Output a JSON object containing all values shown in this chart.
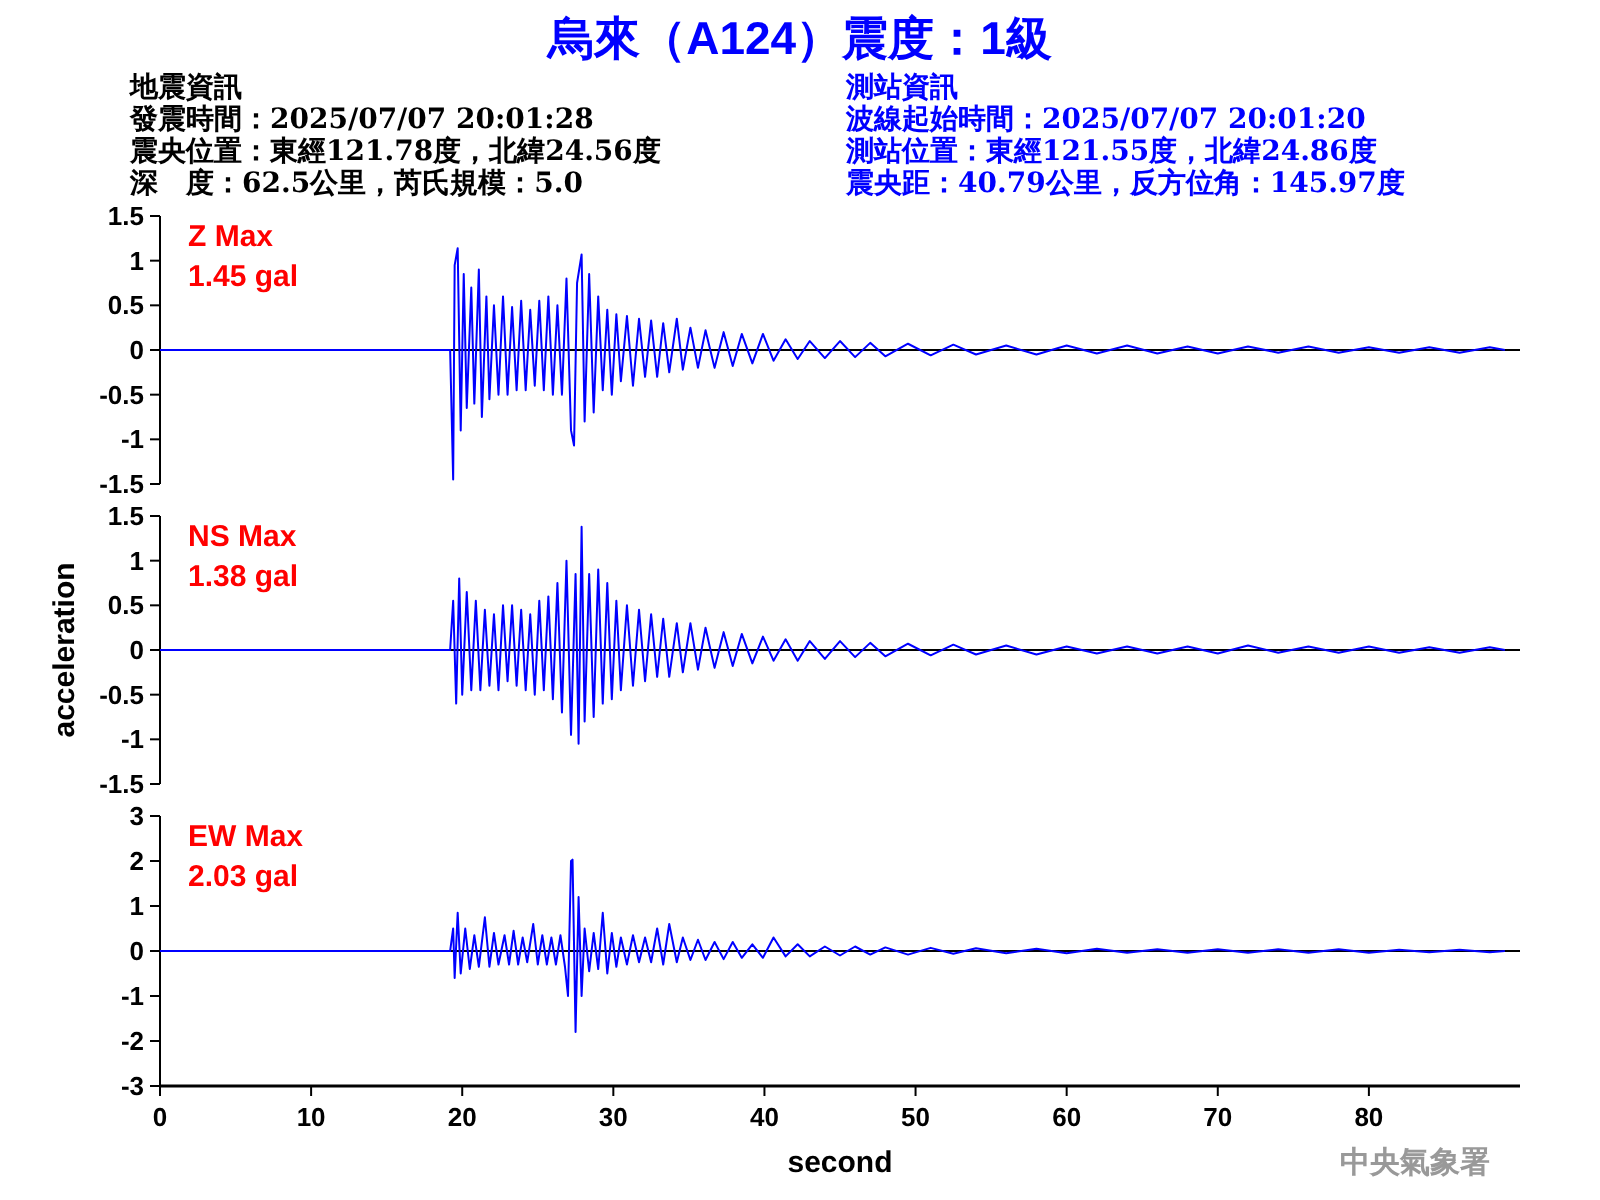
{
  "chart_data": [
    {
      "type": "line",
      "title": "烏來（A124）震度：1級",
      "annotations": [
        "Z Max",
        "1.45 gal",
        "地震資訊",
        "發震時間：2025/07/07 20:01:28",
        "震央位置：東經121.78度，北緯24.56度",
        "深　度：62.5公里，芮氏規模：5.0",
        "測站資訊",
        "波線起始時間：2025/07/07 20:01:20",
        "測站位置：東經121.55度，北緯24.86度",
        "震央距：40.79公里，反方位角：145.97度"
      ],
      "xlim": [
        0,
        90
      ],
      "ylim": [
        -1.5,
        1.5
      ],
      "yticks": [
        -1.5,
        -1,
        -0.5,
        0,
        0.5,
        1,
        1.5
      ],
      "tick_labels": "y",
      "ref_lines": [
        {
          "axis": "y",
          "value": 0,
          "color": "#000000"
        }
      ],
      "series": [
        {
          "color": "#0000ff",
          "x": [
            0,
            19.2,
            19.4,
            19.5,
            19.7,
            19.9,
            20.1,
            20.3,
            20.6,
            20.8,
            21.1,
            21.3,
            21.6,
            21.8,
            22.1,
            22.4,
            22.7,
            23.0,
            23.3,
            23.6,
            23.9,
            24.2,
            24.5,
            24.8,
            25.1,
            25.4,
            25.7,
            26.0,
            26.3,
            26.6,
            26.9,
            27.2,
            27.4,
            27.6,
            27.9,
            28.1,
            28.4,
            28.7,
            29.0,
            29.3,
            29.6,
            29.9,
            30.2,
            30.5,
            30.9,
            31.3,
            31.7,
            32.1,
            32.5,
            32.9,
            33.3,
            33.7,
            34.2,
            34.6,
            35.1,
            35.6,
            36.1,
            36.7,
            37.3,
            37.9,
            38.5,
            39.2,
            39.9,
            40.6,
            41.4,
            42.2,
            43.0,
            44.0,
            45.0,
            46.0,
            47.0,
            48.0,
            49.5,
            51,
            52.5,
            54,
            56,
            58,
            60,
            62,
            64,
            66,
            68,
            70,
            72,
            74,
            76,
            78,
            80,
            82,
            84,
            86,
            88,
            89
          ],
          "values": [
            0,
            0,
            -1.45,
            0.95,
            1.14,
            -0.9,
            0.85,
            -0.65,
            0.7,
            -0.6,
            0.9,
            -0.75,
            0.6,
            -0.55,
            0.5,
            -0.5,
            0.6,
            -0.5,
            0.48,
            -0.45,
            0.55,
            -0.45,
            0.45,
            -0.4,
            0.55,
            -0.45,
            0.6,
            -0.5,
            0.5,
            -0.5,
            0.8,
            -0.9,
            -1.07,
            0.75,
            1.07,
            -0.8,
            0.85,
            -0.7,
            0.6,
            -0.45,
            0.45,
            -0.5,
            0.4,
            -0.35,
            0.38,
            -0.4,
            0.35,
            -0.3,
            0.33,
            -0.3,
            0.3,
            -0.25,
            0.35,
            -0.22,
            0.25,
            -0.2,
            0.22,
            -0.2,
            0.2,
            -0.18,
            0.18,
            -0.15,
            0.18,
            -0.12,
            0.12,
            -0.1,
            0.1,
            -0.09,
            0.1,
            -0.08,
            0.08,
            -0.07,
            0.07,
            -0.06,
            0.06,
            -0.05,
            0.05,
            -0.05,
            0.05,
            -0.04,
            0.05,
            -0.04,
            0.04,
            -0.04,
            0.04,
            -0.03,
            0.04,
            -0.03,
            0.03,
            -0.03,
            0.03,
            -0.03,
            0.03,
            0
          ]
        }
      ]
    },
    {
      "type": "line",
      "ylabel": "acceleration",
      "annotations": [
        "NS Max",
        "1.38 gal"
      ],
      "xlim": [
        0,
        90
      ],
      "ylim": [
        -1.5,
        1.5
      ],
      "yticks": [
        -1.5,
        -1,
        -0.5,
        0,
        0.5,
        1,
        1.5
      ],
      "tick_labels": "y",
      "ref_lines": [
        {
          "axis": "y",
          "value": 0,
          "color": "#000000"
        }
      ],
      "series": [
        {
          "color": "#0000ff",
          "x": [
            0,
            19.2,
            19.4,
            19.6,
            19.8,
            20.0,
            20.3,
            20.6,
            20.9,
            21.2,
            21.5,
            21.8,
            22.1,
            22.4,
            22.7,
            23.0,
            23.3,
            23.6,
            23.9,
            24.2,
            24.5,
            24.8,
            25.1,
            25.4,
            25.7,
            26.0,
            26.3,
            26.6,
            26.9,
            27.2,
            27.5,
            27.7,
            27.9,
            28.1,
            28.4,
            28.7,
            29.0,
            29.3,
            29.6,
            29.9,
            30.2,
            30.5,
            30.9,
            31.3,
            31.7,
            32.1,
            32.5,
            32.9,
            33.3,
            33.7,
            34.2,
            34.6,
            35.1,
            35.6,
            36.1,
            36.7,
            37.3,
            37.9,
            38.5,
            39.2,
            39.9,
            40.6,
            41.4,
            42.2,
            43.0,
            44.0,
            45.0,
            46.0,
            47.0,
            48.0,
            49.5,
            51,
            52.5,
            54,
            56,
            58,
            60,
            62,
            64,
            66,
            68,
            70,
            72,
            74,
            76,
            78,
            80,
            82,
            84,
            86,
            88,
            89
          ],
          "values": [
            0,
            0,
            0.55,
            -0.6,
            0.8,
            -0.5,
            0.65,
            -0.45,
            0.55,
            -0.45,
            0.45,
            -0.4,
            0.4,
            -0.45,
            0.5,
            -0.35,
            0.5,
            -0.4,
            0.45,
            -0.45,
            0.4,
            -0.5,
            0.55,
            -0.45,
            0.6,
            -0.55,
            0.75,
            -0.7,
            1.0,
            -0.95,
            0.85,
            -1.05,
            1.38,
            -0.8,
            0.85,
            -0.75,
            0.9,
            -0.6,
            0.75,
            -0.55,
            0.55,
            -0.45,
            0.5,
            -0.4,
            0.45,
            -0.35,
            0.4,
            -0.3,
            0.35,
            -0.3,
            0.3,
            -0.25,
            0.3,
            -0.22,
            0.25,
            -0.2,
            0.2,
            -0.18,
            0.18,
            -0.15,
            0.15,
            -0.12,
            0.12,
            -0.12,
            0.1,
            -0.1,
            0.1,
            -0.08,
            0.08,
            -0.07,
            0.07,
            -0.06,
            0.06,
            -0.05,
            0.05,
            -0.05,
            0.04,
            -0.04,
            0.04,
            -0.04,
            0.04,
            -0.04,
            0.05,
            -0.03,
            0.04,
            -0.03,
            0.04,
            -0.03,
            0.03,
            -0.03,
            0.03,
            0
          ]
        }
      ]
    },
    {
      "type": "line",
      "xlabel": "second",
      "annotations": [
        "EW Max",
        "2.03 gal",
        "中央氣象署"
      ],
      "xlim": [
        0,
        90
      ],
      "xticks": [
        0,
        10,
        20,
        30,
        40,
        50,
        60,
        70,
        80
      ],
      "ylim": [
        -3,
        3
      ],
      "yticks": [
        -3,
        -2,
        -1,
        0,
        1,
        2,
        3
      ],
      "ref_lines": [
        {
          "axis": "y",
          "value": 0,
          "color": "#000000"
        }
      ],
      "series": [
        {
          "color": "#0000ff",
          "x": [
            0,
            19.2,
            19.4,
            19.5,
            19.7,
            19.9,
            20.2,
            20.5,
            20.8,
            21.1,
            21.5,
            21.8,
            22.1,
            22.4,
            22.8,
            23.1,
            23.4,
            23.7,
            24.0,
            24.3,
            24.7,
            25.0,
            25.3,
            25.6,
            25.9,
            26.2,
            26.5,
            26.8,
            27.0,
            27.2,
            27.3,
            27.5,
            27.7,
            27.9,
            28.1,
            28.4,
            28.7,
            29.0,
            29.3,
            29.6,
            29.9,
            30.2,
            30.5,
            30.9,
            31.3,
            31.7,
            32.1,
            32.5,
            32.9,
            33.3,
            33.7,
            34.2,
            34.6,
            35.1,
            35.6,
            36.1,
            36.7,
            37.3,
            37.9,
            38.5,
            39.2,
            39.9,
            40.6,
            41.4,
            42.2,
            43.0,
            44.0,
            45.0,
            46.0,
            47.0,
            48.0,
            49.5,
            51,
            52.5,
            54,
            56,
            58,
            60,
            62,
            64,
            66,
            68,
            70,
            72,
            74,
            76,
            78,
            80,
            82,
            84,
            86,
            88,
            89
          ],
          "values": [
            0,
            0,
            0.5,
            -0.6,
            0.85,
            -0.5,
            0.5,
            -0.4,
            0.35,
            -0.35,
            0.75,
            -0.35,
            0.4,
            -0.3,
            0.35,
            -0.3,
            0.45,
            -0.3,
            0.3,
            -0.25,
            0.6,
            -0.3,
            0.35,
            -0.3,
            0.3,
            -0.3,
            0.35,
            -0.35,
            -1.0,
            2.0,
            2.03,
            -1.8,
            1.2,
            -1.0,
            0.5,
            -0.45,
            0.4,
            -0.4,
            0.85,
            -0.5,
            0.4,
            -0.35,
            0.3,
            -0.3,
            0.35,
            -0.25,
            0.3,
            -0.25,
            0.5,
            -0.3,
            0.6,
            -0.25,
            0.3,
            -0.2,
            0.25,
            -0.2,
            0.2,
            -0.18,
            0.2,
            -0.15,
            0.15,
            -0.15,
            0.3,
            -0.12,
            0.15,
            -0.12,
            0.1,
            -0.1,
            0.1,
            -0.08,
            0.08,
            -0.08,
            0.07,
            -0.06,
            0.06,
            -0.05,
            0.05,
            -0.05,
            0.05,
            -0.04,
            0.04,
            -0.04,
            0.04,
            -0.04,
            0.04,
            -0.04,
            0.04,
            -0.04,
            0.03,
            -0.03,
            0.03,
            -0.03,
            0
          ]
        }
      ]
    }
  ]
}
